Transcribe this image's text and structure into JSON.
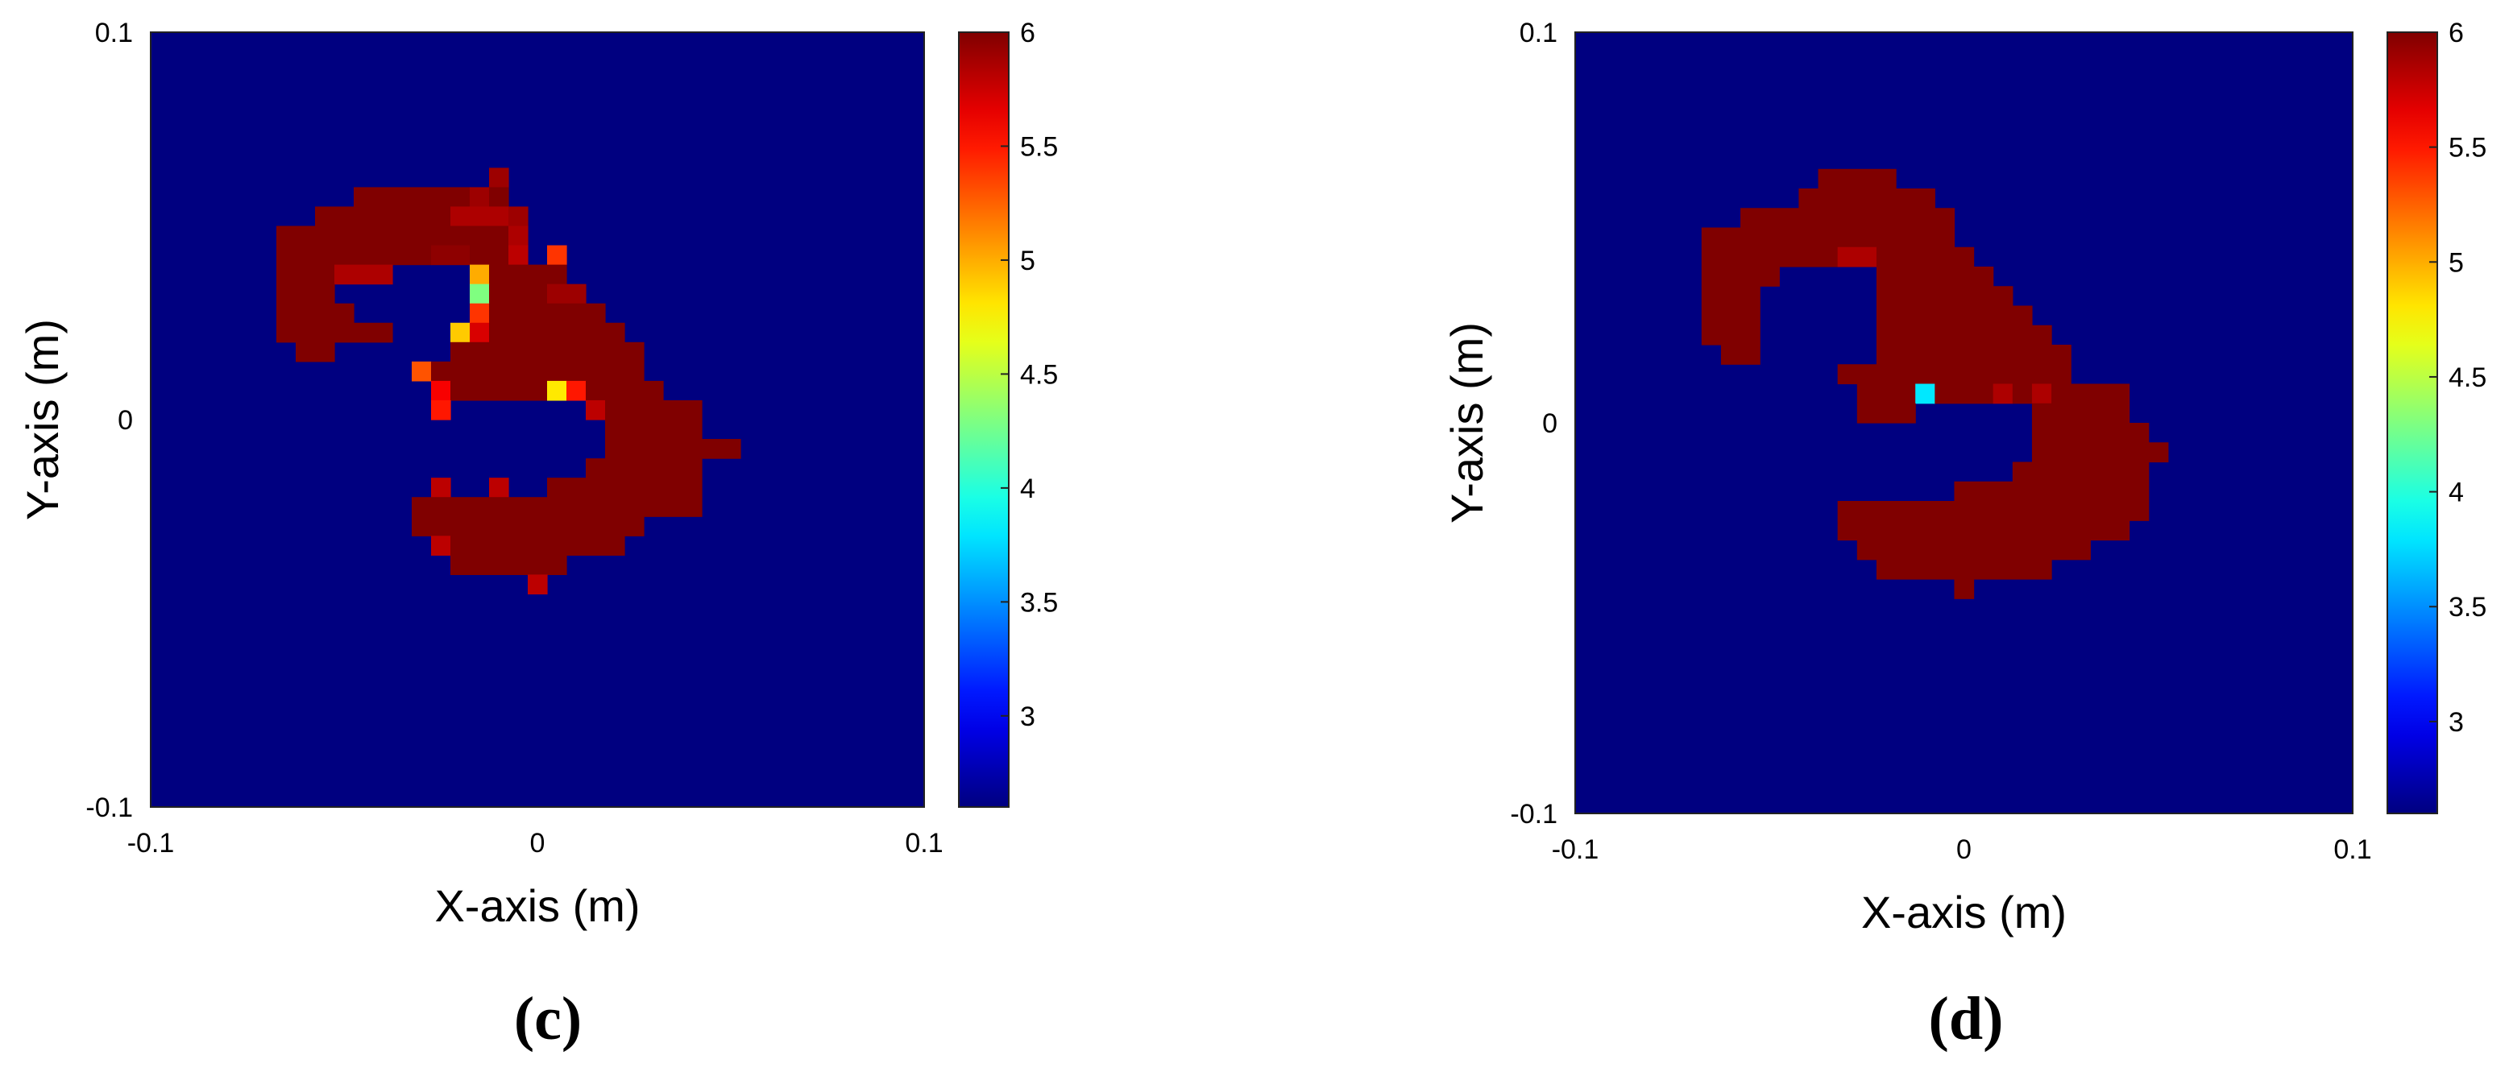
{
  "chart_data": [
    {
      "type": "heatmap",
      "panel_label": "(c)",
      "xlabel": "X-axis (m)",
      "ylabel": "Y-axis (m)",
      "xlim": [
        -0.1,
        0.1
      ],
      "ylim": [
        -0.1,
        0.1
      ],
      "xticks": [
        "-0.1",
        "0",
        "0.1"
      ],
      "yticks": [
        "0.1",
        "0",
        "-0.1"
      ],
      "grid": "32x32 cells",
      "colormap": "jet",
      "clim": [
        2.6,
        6.0
      ],
      "colorbar_ticks": [
        "6",
        "5.5",
        "5",
        "4.5",
        "4",
        "3.5",
        "3"
      ],
      "background_value": 2.6,
      "rows": [
        {
          "y": 0.0625,
          "cells": [
            [
              -0.0125,
              -0.0075,
              5.9
            ]
          ]
        },
        {
          "y": 0.0575,
          "cells": [
            [
              -0.0475,
              -0.0175,
              6.0
            ],
            [
              -0.0175,
              -0.0125,
              5.9
            ],
            [
              -0.0125,
              -0.0075,
              6.0
            ]
          ]
        },
        {
          "y": 0.0525,
          "cells": [
            [
              -0.0575,
              -0.0225,
              6.0
            ],
            [
              -0.0225,
              -0.0075,
              5.85
            ],
            [
              -0.0075,
              -0.0025,
              5.9
            ]
          ]
        },
        {
          "y": 0.0475,
          "cells": [
            [
              -0.0675,
              -0.0075,
              6.0
            ],
            [
              -0.0075,
              -0.0025,
              5.85
            ]
          ]
        },
        {
          "y": 0.0425,
          "cells": [
            [
              -0.0675,
              -0.0275,
              6.0
            ],
            [
              -0.0275,
              -0.0175,
              5.95
            ],
            [
              -0.0175,
              -0.0075,
              6.0
            ],
            [
              -0.0075,
              -0.0025,
              5.8
            ],
            [
              0.0025,
              0.0075,
              5.4
            ]
          ]
        },
        {
          "y": 0.0375,
          "cells": [
            [
              -0.0675,
              -0.0525,
              6.0
            ],
            [
              -0.0525,
              -0.0375,
              5.85
            ],
            [
              -0.0175,
              -0.0125,
              5.0
            ],
            [
              -0.0125,
              0.0075,
              6.0
            ]
          ]
        },
        {
          "y": 0.0325,
          "cells": [
            [
              -0.0675,
              -0.0525,
              6.0
            ],
            [
              -0.0175,
              -0.0125,
              4.3
            ],
            [
              -0.0125,
              0.0025,
              6.0
            ],
            [
              0.0025,
              0.0125,
              5.9
            ]
          ]
        },
        {
          "y": 0.0275,
          "cells": [
            [
              -0.0675,
              -0.0475,
              6.0
            ],
            [
              -0.0175,
              -0.0125,
              5.4
            ],
            [
              -0.0125,
              0.0175,
              6.0
            ]
          ]
        },
        {
          "y": 0.0225,
          "cells": [
            [
              -0.0675,
              -0.0375,
              6.0
            ],
            [
              -0.0225,
              -0.0175,
              4.9
            ],
            [
              -0.0175,
              -0.0125,
              5.7
            ],
            [
              -0.0125,
              0.0225,
              6.0
            ]
          ]
        },
        {
          "y": 0.0175,
          "cells": [
            [
              -0.0625,
              -0.0525,
              6.0
            ],
            [
              -0.0225,
              0.0275,
              6.0
            ]
          ]
        },
        {
          "y": 0.0125,
          "cells": [
            [
              -0.0325,
              -0.0275,
              5.3
            ],
            [
              -0.0275,
              0.0275,
              6.0
            ]
          ]
        },
        {
          "y": 0.0075,
          "cells": [
            [
              -0.0275,
              -0.0225,
              5.6
            ],
            [
              -0.0225,
              0.0025,
              6.0
            ],
            [
              0.0025,
              0.0075,
              4.8
            ],
            [
              0.0075,
              0.0125,
              5.5
            ],
            [
              0.0125,
              0.0325,
              6.0
            ]
          ]
        },
        {
          "y": 0.0025,
          "cells": [
            [
              -0.0275,
              -0.0225,
              5.5
            ],
            [
              0.0125,
              0.0175,
              5.8
            ],
            [
              0.0175,
              0.0425,
              6.0
            ]
          ]
        },
        {
          "y": -0.0025,
          "cells": [
            [
              0.0175,
              0.0425,
              6.0
            ]
          ]
        },
        {
          "y": -0.0075,
          "cells": [
            [
              0.0175,
              0.0525,
              6.0
            ]
          ]
        },
        {
          "y": -0.0125,
          "cells": [
            [
              0.0125,
              0.0425,
              6.0
            ]
          ]
        },
        {
          "y": -0.0175,
          "cells": [
            [
              -0.0275,
              -0.0225,
              5.8
            ],
            [
              -0.0125,
              -0.0075,
              5.8
            ],
            [
              0.0025,
              0.0425,
              6.0
            ]
          ]
        },
        {
          "y": -0.0225,
          "cells": [
            [
              -0.0325,
              0.0425,
              6.0
            ]
          ]
        },
        {
          "y": -0.0275,
          "cells": [
            [
              -0.0325,
              0.0275,
              6.0
            ]
          ]
        },
        {
          "y": -0.0325,
          "cells": [
            [
              -0.0275,
              -0.0225,
              5.8
            ],
            [
              -0.0225,
              0.0225,
              6.0
            ]
          ]
        },
        {
          "y": -0.0375,
          "cells": [
            [
              -0.0225,
              0.0075,
              6.0
            ]
          ]
        },
        {
          "y": -0.0425,
          "cells": [
            [
              -0.0025,
              0.0025,
              5.8
            ]
          ]
        }
      ]
    },
    {
      "type": "heatmap",
      "panel_label": "(d)",
      "xlabel": "X-axis (m)",
      "ylabel": "Y-axis (m)",
      "xlim": [
        -0.1,
        0.1
      ],
      "ylim": [
        -0.1,
        0.1
      ],
      "xticks": [
        "-0.1",
        "0",
        "0.1"
      ],
      "yticks": [
        "0.1",
        "0",
        "-0.1"
      ],
      "grid": "32x32 cells",
      "colormap": "jet",
      "clim": [
        2.6,
        6.0
      ],
      "colorbar_ticks": [
        "6",
        "5.5",
        "5",
        "4.5",
        "4",
        "3.5",
        "3"
      ],
      "background_value": 2.6,
      "rows": [
        {
          "y": 0.0625,
          "cells": [
            [
              -0.0375,
              -0.0175,
              6.0
            ]
          ]
        },
        {
          "y": 0.0575,
          "cells": [
            [
              -0.0425,
              -0.0075,
              6.0
            ]
          ]
        },
        {
          "y": 0.0525,
          "cells": [
            [
              -0.0575,
              -0.0025,
              6.0
            ]
          ]
        },
        {
          "y": 0.0475,
          "cells": [
            [
              -0.0675,
              -0.0025,
              6.0
            ]
          ]
        },
        {
          "y": 0.0425,
          "cells": [
            [
              -0.0675,
              -0.0325,
              6.0
            ],
            [
              -0.0325,
              -0.0225,
              5.85
            ],
            [
              -0.0225,
              0.0025,
              6.0
            ]
          ]
        },
        {
          "y": 0.0375,
          "cells": [
            [
              -0.0675,
              -0.0475,
              6.0
            ],
            [
              -0.0225,
              0.0075,
              6.0
            ]
          ]
        },
        {
          "y": 0.0325,
          "cells": [
            [
              -0.0675,
              -0.0525,
              6.0
            ],
            [
              -0.0225,
              0.0125,
              6.0
            ]
          ]
        },
        {
          "y": 0.0275,
          "cells": [
            [
              -0.0675,
              -0.0525,
              6.0
            ],
            [
              -0.0225,
              0.0175,
              6.0
            ]
          ]
        },
        {
          "y": 0.0225,
          "cells": [
            [
              -0.0675,
              -0.0525,
              6.0
            ],
            [
              -0.0225,
              0.0225,
              6.0
            ]
          ]
        },
        {
          "y": 0.0175,
          "cells": [
            [
              -0.0625,
              -0.0525,
              6.0
            ],
            [
              -0.0225,
              0.0275,
              6.0
            ]
          ]
        },
        {
          "y": 0.0125,
          "cells": [
            [
              -0.0325,
              0.0275,
              6.0
            ]
          ]
        },
        {
          "y": 0.0075,
          "cells": [
            [
              -0.0275,
              -0.0125,
              6.0
            ],
            [
              -0.0125,
              -0.0075,
              3.8
            ],
            [
              -0.0075,
              0.0075,
              6.0
            ],
            [
              0.0075,
              0.0125,
              5.85
            ],
            [
              0.0125,
              0.0175,
              6.0
            ],
            [
              0.0175,
              0.0225,
              5.85
            ],
            [
              0.0225,
              0.0425,
              6.0
            ]
          ]
        },
        {
          "y": 0.0025,
          "cells": [
            [
              -0.0275,
              -0.0125,
              6.0
            ],
            [
              0.0175,
              0.0425,
              6.0
            ]
          ]
        },
        {
          "y": -0.0025,
          "cells": [
            [
              0.0175,
              0.0475,
              6.0
            ]
          ]
        },
        {
          "y": -0.0075,
          "cells": [
            [
              0.0175,
              0.0525,
              6.0
            ]
          ]
        },
        {
          "y": -0.0125,
          "cells": [
            [
              0.0125,
              0.0475,
              6.0
            ]
          ]
        },
        {
          "y": -0.0175,
          "cells": [
            [
              -0.0025,
              0.0475,
              6.0
            ]
          ]
        },
        {
          "y": -0.0225,
          "cells": [
            [
              -0.0325,
              0.0475,
              6.0
            ]
          ]
        },
        {
          "y": -0.0275,
          "cells": [
            [
              -0.0325,
              0.0425,
              6.0
            ]
          ]
        },
        {
          "y": -0.0325,
          "cells": [
            [
              -0.0275,
              0.0325,
              6.0
            ]
          ]
        },
        {
          "y": -0.0375,
          "cells": [
            [
              -0.0225,
              0.0225,
              6.0
            ]
          ]
        },
        {
          "y": -0.0425,
          "cells": [
            [
              -0.0025,
              0.0025,
              6.0
            ]
          ]
        }
      ]
    }
  ]
}
